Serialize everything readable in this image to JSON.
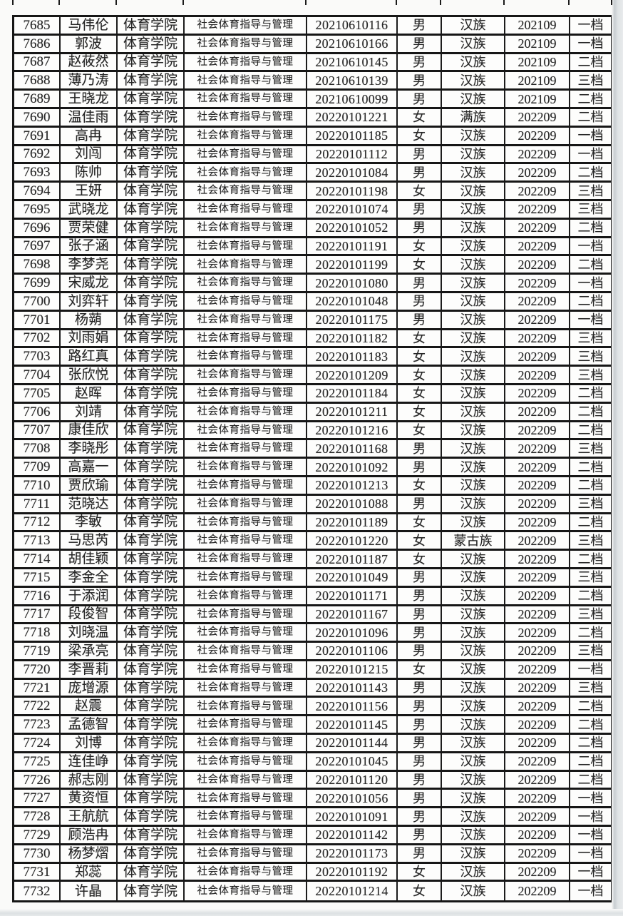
{
  "page": {
    "background": "#fafaf9",
    "border_color": "#161616",
    "scan_band_color": "#dfe3e5",
    "text_color": "#262626"
  },
  "table": {
    "column_keys": [
      "serial",
      "name",
      "college",
      "major",
      "student_no",
      "gender",
      "ethnicity",
      "term",
      "level"
    ],
    "rows": [
      [
        "7685",
        "马伟伦",
        "体育学院",
        "社会体育指导与管理",
        "20210610116",
        "男",
        "汉族",
        "202109",
        "一档"
      ],
      [
        "7686",
        "郭波",
        "体育学院",
        "社会体育指导与管理",
        "20210610166",
        "男",
        "汉族",
        "202109",
        "一档"
      ],
      [
        "7687",
        "赵莜然",
        "体育学院",
        "社会体育指导与管理",
        "20210610145",
        "男",
        "汉族",
        "202109",
        "二档"
      ],
      [
        "7688",
        "薄乃涛",
        "体育学院",
        "社会体育指导与管理",
        "20210610139",
        "男",
        "汉族",
        "202109",
        "三档"
      ],
      [
        "7689",
        "王晓龙",
        "体育学院",
        "社会体育指导与管理",
        "20210610099",
        "男",
        "汉族",
        "202109",
        "二档"
      ],
      [
        "7690",
        "温佳雨",
        "体育学院",
        "社会体育指导与管理",
        "20220101221",
        "女",
        "满族",
        "202209",
        "二档"
      ],
      [
        "7691",
        "高冉",
        "体育学院",
        "社会体育指导与管理",
        "20220101185",
        "女",
        "汉族",
        "202209",
        "一档"
      ],
      [
        "7692",
        "刘闯",
        "体育学院",
        "社会体育指导与管理",
        "20220101112",
        "男",
        "汉族",
        "202209",
        "一档"
      ],
      [
        "7693",
        "陈帅",
        "体育学院",
        "社会体育指导与管理",
        "20220101084",
        "男",
        "汉族",
        "202209",
        "二档"
      ],
      [
        "7694",
        "王妍",
        "体育学院",
        "社会体育指导与管理",
        "20220101198",
        "女",
        "汉族",
        "202209",
        "三档"
      ],
      [
        "7695",
        "武晓龙",
        "体育学院",
        "社会体育指导与管理",
        "20220101074",
        "男",
        "汉族",
        "202209",
        "三档"
      ],
      [
        "7696",
        "贾荣健",
        "体育学院",
        "社会体育指导与管理",
        "20220101052",
        "男",
        "汉族",
        "202209",
        "二档"
      ],
      [
        "7697",
        "张子涵",
        "体育学院",
        "社会体育指导与管理",
        "20220101191",
        "女",
        "汉族",
        "202209",
        "一档"
      ],
      [
        "7698",
        "李梦尧",
        "体育学院",
        "社会体育指导与管理",
        "20220101199",
        "女",
        "汉族",
        "202209",
        "二档"
      ],
      [
        "7699",
        "宋威龙",
        "体育学院",
        "社会体育指导与管理",
        "20220101080",
        "男",
        "汉族",
        "202209",
        "一档"
      ],
      [
        "7700",
        "刘弈轩",
        "体育学院",
        "社会体育指导与管理",
        "20220101048",
        "男",
        "汉族",
        "202209",
        "二档"
      ],
      [
        "7701",
        "杨蒴",
        "体育学院",
        "社会体育指导与管理",
        "20220101175",
        "男",
        "汉族",
        "202209",
        "一档"
      ],
      [
        "7702",
        "刘雨娟",
        "体育学院",
        "社会体育指导与管理",
        "20220101182",
        "女",
        "汉族",
        "202209",
        "三档"
      ],
      [
        "7703",
        "路红真",
        "体育学院",
        "社会体育指导与管理",
        "20220101183",
        "女",
        "汉族",
        "202209",
        "三档"
      ],
      [
        "7704",
        "张欣悦",
        "体育学院",
        "社会体育指导与管理",
        "20220101209",
        "女",
        "汉族",
        "202209",
        "三档"
      ],
      [
        "7705",
        "赵晖",
        "体育学院",
        "社会体育指导与管理",
        "20220101184",
        "女",
        "汉族",
        "202209",
        "二档"
      ],
      [
        "7706",
        "刘靖",
        "体育学院",
        "社会体育指导与管理",
        "20220101211",
        "女",
        "汉族",
        "202209",
        "二档"
      ],
      [
        "7707",
        "康佳欣",
        "体育学院",
        "社会体育指导与管理",
        "20220101216",
        "女",
        "汉族",
        "202209",
        "二档"
      ],
      [
        "7708",
        "李晓彤",
        "体育学院",
        "社会体育指导与管理",
        "20220101168",
        "男",
        "汉族",
        "202209",
        "三档"
      ],
      [
        "7709",
        "高嘉一",
        "体育学院",
        "社会体育指导与管理",
        "20220101092",
        "男",
        "汉族",
        "202209",
        "二档"
      ],
      [
        "7710",
        "贾欣瑜",
        "体育学院",
        "社会体育指导与管理",
        "20220101213",
        "女",
        "汉族",
        "202209",
        "二档"
      ],
      [
        "7711",
        "范晓达",
        "体育学院",
        "社会体育指导与管理",
        "20220101088",
        "男",
        "汉族",
        "202209",
        "三档"
      ],
      [
        "7712",
        "李敏",
        "体育学院",
        "社会体育指导与管理",
        "20220101189",
        "女",
        "汉族",
        "202209",
        "二档"
      ],
      [
        "7713",
        "马思芮",
        "体育学院",
        "社会体育指导与管理",
        "20220101220",
        "女",
        "蒙古族",
        "202209",
        "三档"
      ],
      [
        "7714",
        "胡佳颖",
        "体育学院",
        "社会体育指导与管理",
        "20220101187",
        "女",
        "汉族",
        "202209",
        "二档"
      ],
      [
        "7715",
        "李金全",
        "体育学院",
        "社会体育指导与管理",
        "20220101049",
        "男",
        "汉族",
        "202209",
        "三档"
      ],
      [
        "7716",
        "于添润",
        "体育学院",
        "社会体育指导与管理",
        "20220101171",
        "男",
        "汉族",
        "202209",
        "二档"
      ],
      [
        "7717",
        "段俊智",
        "体育学院",
        "社会体育指导与管理",
        "20220101167",
        "男",
        "汉族",
        "202209",
        "三档"
      ],
      [
        "7718",
        "刘晓温",
        "体育学院",
        "社会体育指导与管理",
        "20220101096",
        "男",
        "汉族",
        "202209",
        "二档"
      ],
      [
        "7719",
        "梁承亮",
        "体育学院",
        "社会体育指导与管理",
        "20220101106",
        "男",
        "汉族",
        "202209",
        "三档"
      ],
      [
        "7720",
        "李晋莉",
        "体育学院",
        "社会体育指导与管理",
        "20220101215",
        "女",
        "汉族",
        "202209",
        "一档"
      ],
      [
        "7721",
        "庞增源",
        "体育学院",
        "社会体育指导与管理",
        "20220101143",
        "男",
        "汉族",
        "202209",
        "三档"
      ],
      [
        "7722",
        "赵震",
        "体育学院",
        "社会体育指导与管理",
        "20220101156",
        "男",
        "汉族",
        "202209",
        "二档"
      ],
      [
        "7723",
        "孟德智",
        "体育学院",
        "社会体育指导与管理",
        "20220101145",
        "男",
        "汉族",
        "202209",
        "二档"
      ],
      [
        "7724",
        "刘博",
        "体育学院",
        "社会体育指导与管理",
        "20220101144",
        "男",
        "汉族",
        "202209",
        "二档"
      ],
      [
        "7725",
        "连佳峥",
        "体育学院",
        "社会体育指导与管理",
        "20220101045",
        "男",
        "汉族",
        "202209",
        "二档"
      ],
      [
        "7726",
        "郝志刚",
        "体育学院",
        "社会体育指导与管理",
        "20220101120",
        "男",
        "汉族",
        "202209",
        "二档"
      ],
      [
        "7727",
        "黄资恒",
        "体育学院",
        "社会体育指导与管理",
        "20220101056",
        "男",
        "汉族",
        "202209",
        "一档"
      ],
      [
        "7728",
        "王航航",
        "体育学院",
        "社会体育指导与管理",
        "20220101091",
        "男",
        "汉族",
        "202209",
        "一档"
      ],
      [
        "7729",
        "顾浩冉",
        "体育学院",
        "社会体育指导与管理",
        "20220101142",
        "男",
        "汉族",
        "202209",
        "一档"
      ],
      [
        "7730",
        "杨梦熠",
        "体育学院",
        "社会体育指导与管理",
        "20220101173",
        "男",
        "汉族",
        "202209",
        "一档"
      ],
      [
        "7731",
        "郑蕊",
        "体育学院",
        "社会体育指导与管理",
        "20220101192",
        "女",
        "汉族",
        "202209",
        "一档"
      ],
      [
        "7732",
        "许晶",
        "体育学院",
        "社会体育指导与管理",
        "20220101214",
        "女",
        "汉族",
        "202209",
        "一档"
      ]
    ]
  }
}
